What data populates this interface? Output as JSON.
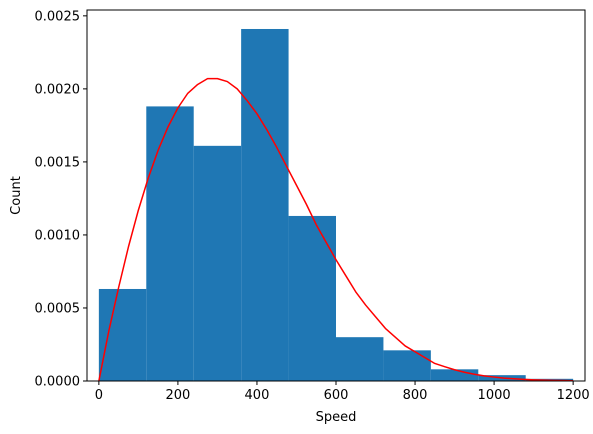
{
  "chart_data": {
    "type": "bar",
    "subtype": "histogram-with-density-curve",
    "title": "",
    "xlabel": "Speed",
    "ylabel": "Count",
    "xlim": [
      -30,
      1230
    ],
    "ylim": [
      0,
      0.00254
    ],
    "x_ticks": [
      0,
      200,
      400,
      600,
      800,
      1000,
      1200
    ],
    "x_tick_labels": [
      "0",
      "200",
      "400",
      "600",
      "800",
      "1000",
      "1200"
    ],
    "y_ticks": [
      0,
      0.0005,
      0.001,
      0.0015,
      0.002,
      0.0025
    ],
    "y_tick_labels": [
      "0.0000",
      "0.0005",
      "0.0010",
      "0.0015",
      "0.0020",
      "0.0025"
    ],
    "bins": [
      {
        "start": 0,
        "end": 120,
        "value": 0.00063
      },
      {
        "start": 120,
        "end": 240,
        "value": 0.00188
      },
      {
        "start": 240,
        "end": 360,
        "value": 0.00161
      },
      {
        "start": 360,
        "end": 480,
        "value": 0.00241
      },
      {
        "start": 480,
        "end": 600,
        "value": 0.00113
      },
      {
        "start": 600,
        "end": 720,
        "value": 0.0003
      },
      {
        "start": 720,
        "end": 840,
        "value": 0.00021
      },
      {
        "start": 840,
        "end": 960,
        "value": 8e-05
      },
      {
        "start": 960,
        "end": 1080,
        "value": 4e-05
      },
      {
        "start": 1080,
        "end": 1200,
        "value": 1.5e-05
      }
    ],
    "curve": {
      "x": [
        0,
        25,
        50,
        75,
        100,
        125,
        150,
        175,
        200,
        225,
        250,
        275,
        300,
        325,
        350,
        375,
        400,
        425,
        450,
        475,
        500,
        525,
        550,
        575,
        600,
        625,
        650,
        675,
        700,
        725,
        750,
        775,
        800,
        825,
        850,
        875,
        900,
        925,
        950,
        975,
        1000,
        1025,
        1050,
        1075,
        1100,
        1125,
        1150,
        1175,
        1200
      ],
      "y": [
        0,
        0.00034,
        0.00064,
        0.00092,
        0.00117,
        0.00139,
        0.00158,
        0.00174,
        0.00187,
        0.00197,
        0.00203,
        0.00207,
        0.00207,
        0.00205,
        0.002,
        0.00192,
        0.00183,
        0.00172,
        0.0016,
        0.00147,
        0.00134,
        0.00121,
        0.00107,
        0.00095,
        0.00083,
        0.00072,
        0.00061,
        0.00052,
        0.00044,
        0.00036,
        0.0003,
        0.00024,
        0.0002,
        0.00016,
        0.00012,
        9.8e-05,
        7.7e-05,
        6e-05,
        4.6e-05,
        3.5e-05,
        2.7e-05,
        2e-05,
        1.5e-05,
        1.1e-05,
        8e-06,
        6e-06,
        4e-06,
        3e-06,
        2e-06
      ]
    },
    "colors": {
      "bars": "#1f77b4",
      "curve": "#ff0000",
      "axes": "#000000"
    },
    "grid": false,
    "legend": "none"
  }
}
